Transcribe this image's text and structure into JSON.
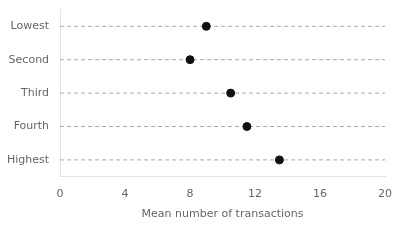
{
  "chart_data": {
    "type": "dot",
    "orientation": "horizontal",
    "categories": [
      "Lowest",
      "Second",
      "Third",
      "Fourth",
      "Highest"
    ],
    "values": [
      9.0,
      8.0,
      10.5,
      11.5,
      13.5
    ],
    "xlabel": "Mean number of transactions",
    "xlim": [
      0,
      20
    ],
    "xticks": [
      0,
      4,
      8,
      12,
      16,
      20
    ],
    "color": "#111111",
    "marker": "circle",
    "line_style": "dashed",
    "grid": false
  }
}
